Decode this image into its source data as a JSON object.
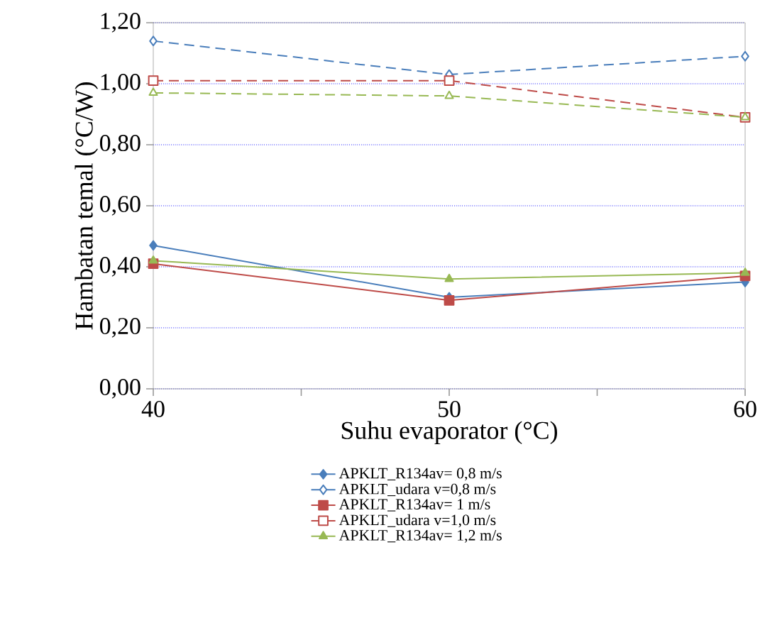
{
  "chart_data": {
    "type": "line",
    "xlabel": "Suhu evaporator (°C)",
    "ylabel": "Hambatan temal (°C/W)",
    "x": [
      40,
      50,
      60
    ],
    "xlim": [
      40,
      60
    ],
    "xticks": [
      40,
      {
        "value": 45,
        "label": null
      },
      50,
      {
        "value": 55,
        "label": null
      },
      60
    ],
    "ylim": [
      0,
      1.2
    ],
    "yticks": [
      {
        "value": 0,
        "label": "0,00"
      },
      {
        "value": 0.2,
        "label": "0,20"
      },
      {
        "value": 0.4,
        "label": "0,40"
      },
      {
        "value": 0.6,
        "label": "0,60"
      },
      {
        "value": 0.8,
        "label": "0,80"
      },
      {
        "value": 1.0,
        "label": "1,00"
      },
      {
        "value": 1.2,
        "label": "1,20"
      }
    ],
    "grid": "y",
    "legend": "bottom",
    "series": [
      {
        "name": "APKLT_R134av= 0,8 m/s",
        "color": "#4a7ebb",
        "marker": "diamond",
        "line_style": "solid",
        "values": [
          0.47,
          0.3,
          0.35
        ]
      },
      {
        "name": "APKLT_udara v=0,8 m/s",
        "color": "#4a7ebb",
        "marker": "diamond",
        "line_style": "dashed",
        "values": [
          1.14,
          1.03,
          1.09
        ]
      },
      {
        "name": "APKLT_R134av= 1 m/s",
        "color": "#be4b48",
        "marker": "square",
        "line_style": "solid",
        "values": [
          0.41,
          0.29,
          0.37
        ]
      },
      {
        "name": "APKLT_udara v=1,0 m/s",
        "color": "#be4b48",
        "marker": "square",
        "line_style": "dashed",
        "values": [
          1.01,
          1.01,
          0.89
        ]
      },
      {
        "name": "APKLT_R134av= 1,2 m/s",
        "color": "#98b954",
        "marker": "triangle",
        "line_style": "solid",
        "values": [
          0.42,
          0.36,
          0.38
        ]
      },
      {
        "color": "#98b954",
        "marker": "triangle",
        "line_style": "dashed",
        "values": [
          0.97,
          0.96,
          0.89
        ]
      }
    ]
  }
}
